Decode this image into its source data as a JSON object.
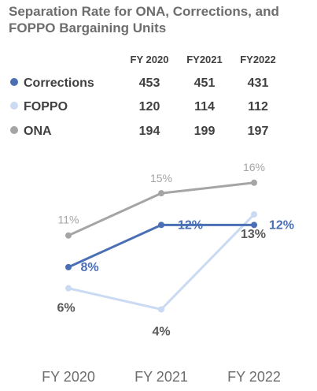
{
  "title": "Separation Rate for ONA, Corrections, and FOPPO Bargaining Units",
  "table": {
    "columns": [
      "FY 2020",
      "FY2021",
      "FY2022"
    ],
    "rows": [
      {
        "label": "Corrections",
        "values": [
          "453",
          "451",
          "431"
        ],
        "color": "#4a6fb5"
      },
      {
        "label": "FOPPO",
        "values": [
          "120",
          "114",
          "112"
        ],
        "color": "#c9daf2"
      },
      {
        "label": "ONA",
        "values": [
          "194",
          "199",
          "197"
        ],
        "color": "#a5a5a5"
      }
    ]
  },
  "chart_data": {
    "type": "line",
    "categories": [
      "FY 2020",
      "FY 2021",
      "FY 2022"
    ],
    "ylim": [
      0,
      18
    ],
    "grid": false,
    "series": [
      {
        "name": "Corrections",
        "values": [
          8,
          12,
          12
        ],
        "labels": [
          "8%",
          "12%",
          "12%"
        ],
        "color": "#4a6fb5",
        "label_color": "#4a6fb5"
      },
      {
        "name": "FOPPO",
        "values": [
          6,
          4,
          13
        ],
        "labels": [
          "6%",
          "4%",
          "13%"
        ],
        "color": "#c9daf2",
        "label_color": "#595959"
      },
      {
        "name": "ONA",
        "values": [
          11,
          15,
          16
        ],
        "labels": [
          "11%",
          "15%",
          "16%"
        ],
        "color": "#a5a5a5",
        "label_color": "#a5a5a5"
      }
    ]
  }
}
